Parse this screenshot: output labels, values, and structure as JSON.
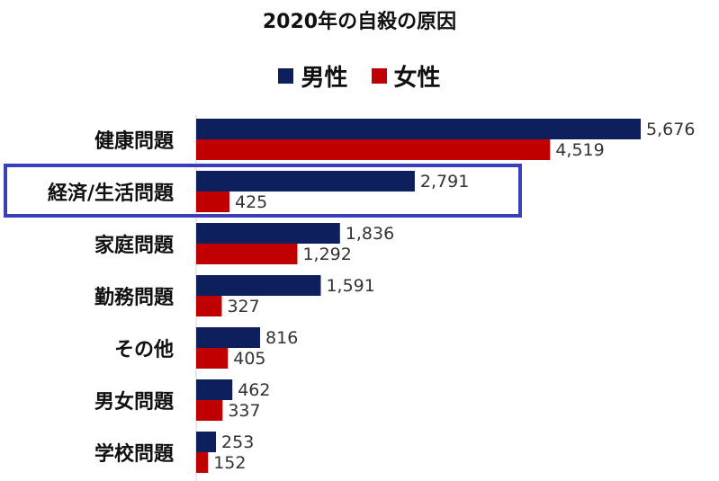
{
  "chart_data": {
    "type": "bar",
    "orientation": "horizontal",
    "title": "2020年の自殺の原因",
    "categories": [
      "健康問題",
      "経済/生活問題",
      "家庭問題",
      "勤務問題",
      "その他",
      "男女問題",
      "学校問題"
    ],
    "series": [
      {
        "name": "男性",
        "color": "#0e1f5e",
        "values": [
          5676,
          2791,
          1836,
          1591,
          816,
          462,
          253
        ],
        "labels": [
          "5,676",
          "2,791",
          "1,836",
          "1,591",
          "816",
          "462",
          "253"
        ]
      },
      {
        "name": "女性",
        "color": "#c00000",
        "values": [
          4519,
          425,
          1292,
          327,
          405,
          337,
          152
        ],
        "labels": [
          "4,519",
          "425",
          "1,292",
          "327",
          "405",
          "337",
          "152"
        ]
      }
    ],
    "xlim": [
      0,
      6250
    ],
    "legend_position": "top",
    "grid": false,
    "highlighted_category": "経済/生活問題",
    "highlight_color": "#3b3fb8"
  }
}
